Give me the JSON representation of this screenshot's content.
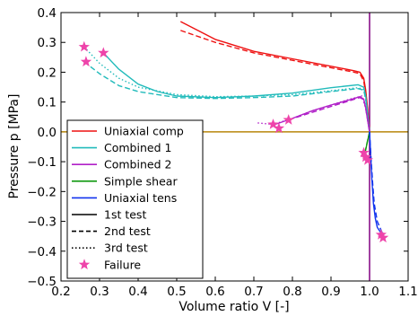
{
  "chart_data": {
    "type": "line",
    "title": "",
    "xlabel": "Volume ratio V [-]",
    "ylabel": "Pressure p [MPa]",
    "xlim": [
      0.2,
      1.1
    ],
    "ylim": [
      -0.5,
      0.4
    ],
    "x_ticks": [
      "0.2",
      "0.3",
      "0.4",
      "0.5",
      "0.6",
      "0.7",
      "0.8",
      "0.9",
      "1.0",
      "1.1"
    ],
    "y_ticks": [
      "0.4",
      "0.3",
      "0.2",
      "0.1",
      "0.0",
      "−0.1",
      "−0.2",
      "−0.3",
      "−0.4",
      "−0.5"
    ],
    "grid": false,
    "legend_position": "lower-left",
    "reference_lines": {
      "horizontal_zero_color": "#b8860b",
      "vertical_one_color": "#800080"
    },
    "legend": [
      {
        "label": "Uniaxial comp",
        "color": "#ee1111",
        "style": "solid"
      },
      {
        "label": "Combined 1",
        "color": "#22bbbb",
        "style": "solid"
      },
      {
        "label": "Combined 2",
        "color": "#b020c8",
        "style": "solid"
      },
      {
        "label": "Simple shear",
        "color": "#119911",
        "style": "solid"
      },
      {
        "label": "Uniaxial tens",
        "color": "#1133ee",
        "style": "solid"
      },
      {
        "label": "1st test",
        "color": "#000000",
        "style": "solid"
      },
      {
        "label": "2nd test",
        "color": "#000000",
        "style": "dashed"
      },
      {
        "label": "3rd test",
        "color": "#000000",
        "style": "dotted"
      },
      {
        "label": "Failure",
        "color": "#ee44aa",
        "style": "star"
      }
    ],
    "series": [
      {
        "group": "Uniaxial comp",
        "test": 1,
        "color": "#ee1111",
        "dash": "",
        "x": [
          0.51,
          0.6,
          0.7,
          0.8,
          0.9,
          0.96,
          0.975,
          0.985,
          0.99,
          0.995,
          1.0
        ],
        "y": [
          0.37,
          0.31,
          0.27,
          0.245,
          0.22,
          0.205,
          0.2,
          0.18,
          0.14,
          0.08,
          0.0
        ]
      },
      {
        "group": "Uniaxial comp",
        "test": 2,
        "color": "#ee1111",
        "dash": "6,3",
        "x": [
          0.51,
          0.6,
          0.7,
          0.8,
          0.9,
          0.96,
          0.975,
          0.985,
          0.99,
          0.995,
          1.0
        ],
        "y": [
          0.34,
          0.3,
          0.265,
          0.24,
          0.215,
          0.2,
          0.195,
          0.17,
          0.13,
          0.07,
          0.0
        ]
      },
      {
        "group": "Combined 1",
        "test": 1,
        "color": "#22bbbb",
        "dash": "",
        "x": [
          0.31,
          0.35,
          0.4,
          0.45,
          0.5,
          0.6,
          0.7,
          0.8,
          0.9,
          0.97,
          0.985,
          0.99,
          0.995,
          1.0
        ],
        "y": [
          0.265,
          0.21,
          0.16,
          0.135,
          0.12,
          0.115,
          0.12,
          0.13,
          0.148,
          0.158,
          0.15,
          0.12,
          0.06,
          0.0
        ]
      },
      {
        "group": "Combined 1",
        "test": 2,
        "color": "#22bbbb",
        "dash": "6,3",
        "x": [
          0.26,
          0.3,
          0.35,
          0.4,
          0.5,
          0.6,
          0.7,
          0.8,
          0.9,
          0.97,
          0.985,
          0.99,
          0.995,
          1.0
        ],
        "y": [
          0.235,
          0.195,
          0.155,
          0.135,
          0.115,
          0.112,
          0.115,
          0.12,
          0.135,
          0.145,
          0.14,
          0.11,
          0.06,
          0.0
        ]
      },
      {
        "group": "Combined 1",
        "test": 3,
        "color": "#22bbbb",
        "dash": "1.5,2.5",
        "x": [
          0.26,
          0.3,
          0.35,
          0.4,
          0.5,
          0.6,
          0.7,
          0.8,
          0.9,
          0.97,
          0.985,
          0.99,
          0.995,
          1.0
        ],
        "y": [
          0.285,
          0.23,
          0.18,
          0.15,
          0.125,
          0.118,
          0.12,
          0.125,
          0.138,
          0.148,
          0.142,
          0.11,
          0.05,
          0.0
        ]
      },
      {
        "group": "Combined 2",
        "test": 1,
        "color": "#b020c8",
        "dash": "",
        "x": [
          0.755,
          0.8,
          0.85,
          0.9,
          0.95,
          0.975,
          0.985,
          0.99,
          0.995,
          1.0
        ],
        "y": [
          0.025,
          0.045,
          0.07,
          0.09,
          0.108,
          0.118,
          0.11,
          0.08,
          0.04,
          0.0
        ]
      },
      {
        "group": "Combined 2",
        "test": 2,
        "color": "#b020c8",
        "dash": "6,3",
        "x": [
          0.79,
          0.85,
          0.9,
          0.95,
          0.975,
          0.985,
          0.99,
          0.995,
          1.0
        ],
        "y": [
          0.04,
          0.065,
          0.085,
          0.105,
          0.115,
          0.108,
          0.078,
          0.04,
          0.0
        ]
      },
      {
        "group": "Combined 2",
        "test": 3,
        "color": "#b020c8",
        "dash": "1.5,2.5",
        "x": [
          0.71,
          0.75,
          0.8,
          0.85,
          0.9,
          0.95,
          0.98,
          0.99,
          1.0
        ],
        "y": [
          0.03,
          0.025,
          0.045,
          0.07,
          0.09,
          0.11,
          0.12,
          0.08,
          0.0
        ]
      },
      {
        "group": "Simple shear",
        "test": 1,
        "color": "#119911",
        "dash": "",
        "x": [
          0.985,
          0.99,
          0.995,
          1.0
        ],
        "y": [
          -0.085,
          -0.06,
          -0.03,
          0.0
        ]
      },
      {
        "group": "Simple shear",
        "test": 2,
        "color": "#119911",
        "dash": "6,3",
        "x": [
          0.988,
          0.993,
          1.0
        ],
        "y": [
          -0.07,
          -0.04,
          0.0
        ]
      },
      {
        "group": "Uniaxial tens",
        "test": 1,
        "color": "#1133ee",
        "dash": "",
        "x": [
          1.0,
          1.003,
          1.006,
          1.01,
          1.015,
          1.02,
          1.03,
          1.04
        ],
        "y": [
          0.0,
          -0.08,
          -0.16,
          -0.24,
          -0.29,
          -0.32,
          -0.34,
          -0.355
        ]
      },
      {
        "group": "Uniaxial tens",
        "test": 2,
        "color": "#1133ee",
        "dash": "6,3",
        "x": [
          1.0,
          1.004,
          1.008,
          1.012,
          1.02,
          1.03,
          1.035
        ],
        "y": [
          0.0,
          -0.09,
          -0.17,
          -0.24,
          -0.3,
          -0.33,
          -0.345
        ]
      }
    ],
    "failure_points": [
      {
        "x": 0.26,
        "y": 0.285
      },
      {
        "x": 0.31,
        "y": 0.265
      },
      {
        "x": 0.265,
        "y": 0.235
      },
      {
        "x": 0.75,
        "y": 0.025
      },
      {
        "x": 0.765,
        "y": 0.012
      },
      {
        "x": 0.79,
        "y": 0.04
      },
      {
        "x": 0.985,
        "y": -0.07
      },
      {
        "x": 0.99,
        "y": -0.085
      },
      {
        "x": 0.995,
        "y": -0.095
      },
      {
        "x": 1.03,
        "y": -0.345
      },
      {
        "x": 1.035,
        "y": -0.355
      }
    ]
  }
}
